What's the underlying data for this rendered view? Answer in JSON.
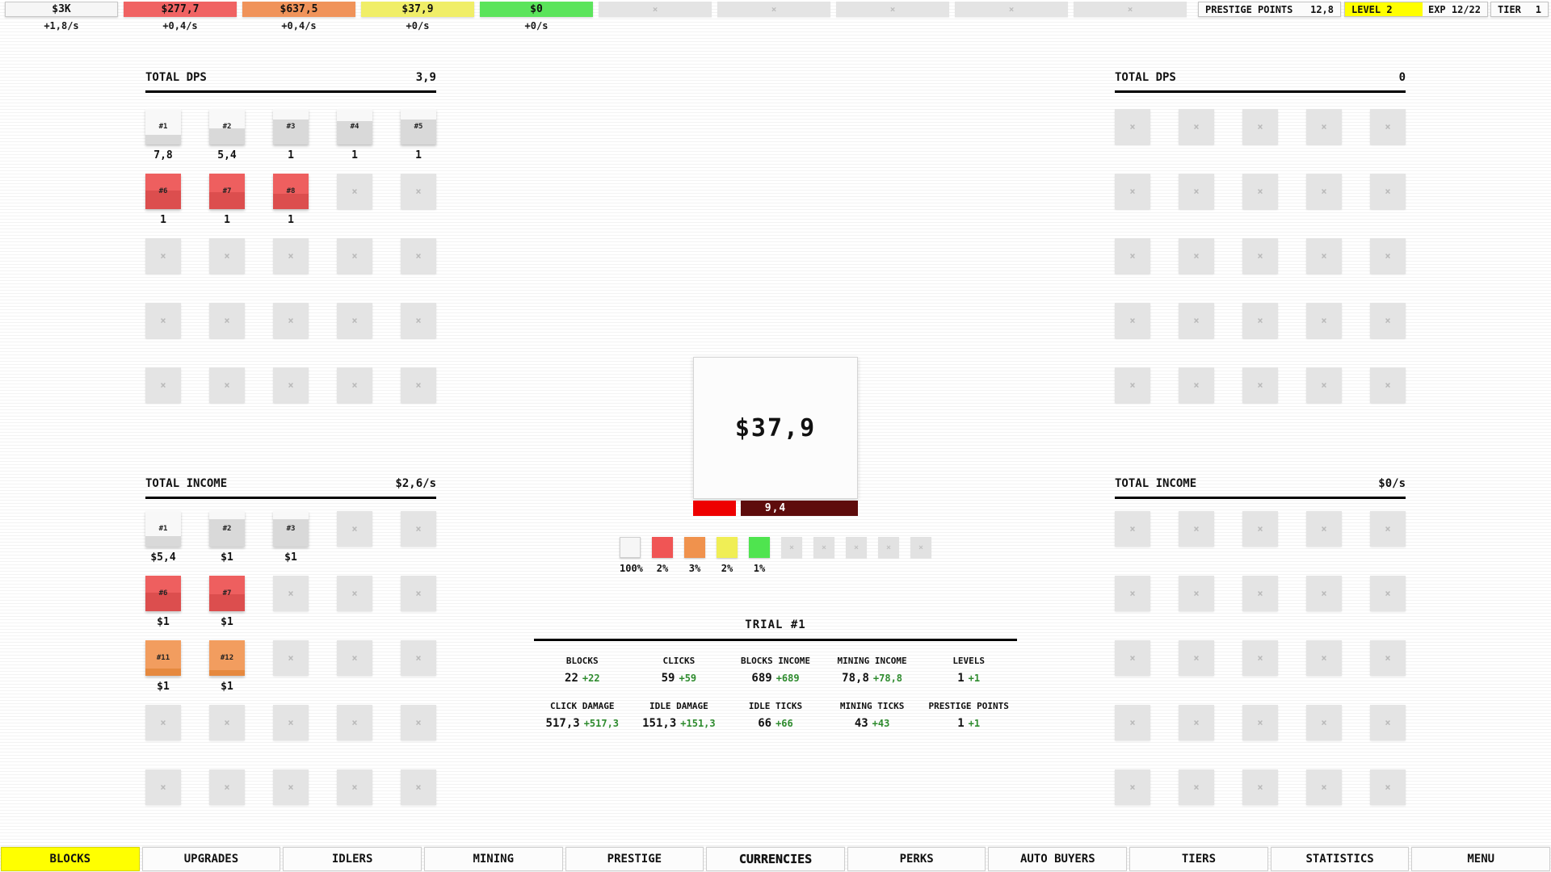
{
  "glyphs": {
    "locked": "×"
  },
  "colors": {
    "accent_yellow": "#ffff00",
    "delta_green": "#2e8b2e",
    "hp_red": "#ee0000",
    "hp_dark": "#5e0c0c",
    "locked_gray": "#e4e4e4",
    "block_types": {
      "plain": {
        "base": "#d9d9d9",
        "fill": "#f8f8f8"
      },
      "red": {
        "base": "#dc4e4e",
        "fill": "#ee5f5f"
      },
      "orange": {
        "base": "#e6893f",
        "fill": "#f29d5f"
      }
    }
  },
  "top_bar": {
    "currencies": [
      {
        "value": "$3K",
        "rate": "+1,8/s",
        "color": "#f6f6f6",
        "bordered": true
      },
      {
        "value": "$277,7",
        "rate": "+0,4/s",
        "color": "#f06363"
      },
      {
        "value": "$637,5",
        "rate": "+0,4/s",
        "color": "#f0935a"
      },
      {
        "value": "$37,9",
        "rate": "+0/s",
        "color": "#f0ee68"
      },
      {
        "value": "$0",
        "rate": "+0/s",
        "color": "#5be45b"
      },
      {
        "locked": true
      },
      {
        "locked": true
      },
      {
        "locked": true
      },
      {
        "locked": true
      },
      {
        "locked": true
      }
    ],
    "prestige_points": {
      "label": "PRESTIGE POINTS",
      "value": "12,8"
    },
    "level": {
      "label": "LEVEL 2",
      "exp_label": "EXP 12/22",
      "progress_pct": 54.5,
      "fill_color": "#ffff00"
    },
    "tier": {
      "label": "TIER",
      "value": "1"
    }
  },
  "panels": {
    "left_dps": {
      "title": "TOTAL DPS",
      "value": "3,9",
      "blocks": [
        {
          "label": "#1",
          "value": "7,8",
          "type": "plain",
          "fill": 72
        },
        {
          "label": "#2",
          "value": "5,4",
          "type": "plain",
          "fill": 55
        },
        {
          "label": "#3",
          "value": "1",
          "type": "plain",
          "fill": 30
        },
        {
          "label": "#4",
          "value": "1",
          "type": "plain",
          "fill": 35
        },
        {
          "label": "#5",
          "value": "1",
          "type": "plain",
          "fill": 30
        },
        {
          "label": "#6",
          "value": "1",
          "type": "red",
          "fill": 48
        },
        {
          "label": "#7",
          "value": "1",
          "type": "red",
          "fill": 52
        },
        {
          "label": "#8",
          "value": "1",
          "type": "red",
          "fill": 56
        },
        {
          "type": "locked"
        },
        {
          "type": "locked"
        },
        {
          "type": "locked"
        },
        {
          "type": "locked"
        },
        {
          "type": "locked"
        },
        {
          "type": "locked"
        },
        {
          "type": "locked"
        },
        {
          "type": "locked"
        },
        {
          "type": "locked"
        },
        {
          "type": "locked"
        },
        {
          "type": "locked"
        },
        {
          "type": "locked"
        },
        {
          "type": "locked"
        },
        {
          "type": "locked"
        },
        {
          "type": "locked"
        },
        {
          "type": "locked"
        },
        {
          "type": "locked"
        }
      ]
    },
    "left_income": {
      "title": "TOTAL INCOME",
      "value": "$2,6/s",
      "blocks": [
        {
          "label": "#1",
          "value": "$5,4",
          "type": "plain",
          "fill": 70
        },
        {
          "label": "#2",
          "value": "$1",
          "type": "plain",
          "fill": 22
        },
        {
          "label": "#3",
          "value": "$1",
          "type": "plain",
          "fill": 22
        },
        {
          "type": "locked"
        },
        {
          "type": "locked"
        },
        {
          "label": "#6",
          "value": "$1",
          "type": "red",
          "fill": 48
        },
        {
          "label": "#7",
          "value": "$1",
          "type": "red",
          "fill": 52
        },
        {
          "type": "locked"
        },
        {
          "type": "locked"
        },
        {
          "type": "locked"
        },
        {
          "label": "#11",
          "value": "$1",
          "type": "orange",
          "fill": 80
        },
        {
          "label": "#12",
          "value": "$1",
          "type": "orange",
          "fill": 85
        },
        {
          "type": "locked"
        },
        {
          "type": "locked"
        },
        {
          "type": "locked"
        },
        {
          "type": "locked"
        },
        {
          "type": "locked"
        },
        {
          "type": "locked"
        },
        {
          "type": "locked"
        },
        {
          "type": "locked"
        },
        {
          "type": "locked"
        },
        {
          "type": "locked"
        },
        {
          "type": "locked"
        },
        {
          "type": "locked"
        },
        {
          "type": "locked"
        }
      ]
    },
    "right_dps": {
      "title": "TOTAL DPS",
      "value": "0",
      "blocks": [
        {
          "type": "locked"
        },
        {
          "type": "locked"
        },
        {
          "type": "locked"
        },
        {
          "type": "locked"
        },
        {
          "type": "locked"
        },
        {
          "type": "locked"
        },
        {
          "type": "locked"
        },
        {
          "type": "locked"
        },
        {
          "type": "locked"
        },
        {
          "type": "locked"
        },
        {
          "type": "locked"
        },
        {
          "type": "locked"
        },
        {
          "type": "locked"
        },
        {
          "type": "locked"
        },
        {
          "type": "locked"
        },
        {
          "type": "locked"
        },
        {
          "type": "locked"
        },
        {
          "type": "locked"
        },
        {
          "type": "locked"
        },
        {
          "type": "locked"
        },
        {
          "type": "locked"
        },
        {
          "type": "locked"
        },
        {
          "type": "locked"
        },
        {
          "type": "locked"
        },
        {
          "type": "locked"
        }
      ]
    },
    "right_income": {
      "title": "TOTAL INCOME",
      "value": "$0/s",
      "blocks": [
        {
          "type": "locked"
        },
        {
          "type": "locked"
        },
        {
          "type": "locked"
        },
        {
          "type": "locked"
        },
        {
          "type": "locked"
        },
        {
          "type": "locked"
        },
        {
          "type": "locked"
        },
        {
          "type": "locked"
        },
        {
          "type": "locked"
        },
        {
          "type": "locked"
        },
        {
          "type": "locked"
        },
        {
          "type": "locked"
        },
        {
          "type": "locked"
        },
        {
          "type": "locked"
        },
        {
          "type": "locked"
        },
        {
          "type": "locked"
        },
        {
          "type": "locked"
        },
        {
          "type": "locked"
        },
        {
          "type": "locked"
        },
        {
          "type": "locked"
        },
        {
          "type": "locked"
        },
        {
          "type": "locked"
        },
        {
          "type": "locked"
        },
        {
          "type": "locked"
        },
        {
          "type": "locked"
        }
      ]
    }
  },
  "center": {
    "block_value": "$37,9",
    "hp_bar": {
      "hp_text": "9,4",
      "remaining_pct": 26
    },
    "spawn_chances": [
      {
        "label": "100%",
        "color": "#f6f6f6",
        "bordered": true
      },
      {
        "label": "2%",
        "color": "#f05555"
      },
      {
        "label": "3%",
        "color": "#f0924d"
      },
      {
        "label": "2%",
        "color": "#f0ee55"
      },
      {
        "label": "1%",
        "color": "#4fe44f"
      },
      {
        "locked": true
      },
      {
        "locked": true
      },
      {
        "locked": true
      },
      {
        "locked": true
      },
      {
        "locked": true
      }
    ]
  },
  "trial": {
    "title": "TRIAL #1",
    "stats": [
      {
        "label": "BLOCKS",
        "value": "22",
        "delta": "+22"
      },
      {
        "label": "CLICKS",
        "value": "59",
        "delta": "+59"
      },
      {
        "label": "BLOCKS INCOME",
        "value": "689",
        "delta": "+689"
      },
      {
        "label": "MINING INCOME",
        "value": "78,8",
        "delta": "+78,8"
      },
      {
        "label": "LEVELS",
        "value": "1",
        "delta": "+1"
      },
      {
        "label": "CLICK DAMAGE",
        "value": "517,3",
        "delta": "+517,3"
      },
      {
        "label": "IDLE DAMAGE",
        "value": "151,3",
        "delta": "+151,3"
      },
      {
        "label": "IDLE TICKS",
        "value": "66",
        "delta": "+66"
      },
      {
        "label": "MINING TICKS",
        "value": "43",
        "delta": "+43"
      },
      {
        "label": "PRESTIGE POINTS",
        "value": "1",
        "delta": "+1"
      }
    ]
  },
  "nav": {
    "tabs": [
      {
        "label": "BLOCKS",
        "active": true
      },
      {
        "label": "UPGRADES"
      },
      {
        "label": "IDLERS"
      },
      {
        "label": "MINING"
      },
      {
        "label": "PRESTIGE"
      },
      {
        "label": "CURRENCIES",
        "hovered": true
      },
      {
        "label": "PERKS"
      },
      {
        "label": "AUTO BUYERS"
      },
      {
        "label": "TIERS"
      },
      {
        "label": "STATISTICS"
      },
      {
        "label": "MENU"
      }
    ]
  }
}
